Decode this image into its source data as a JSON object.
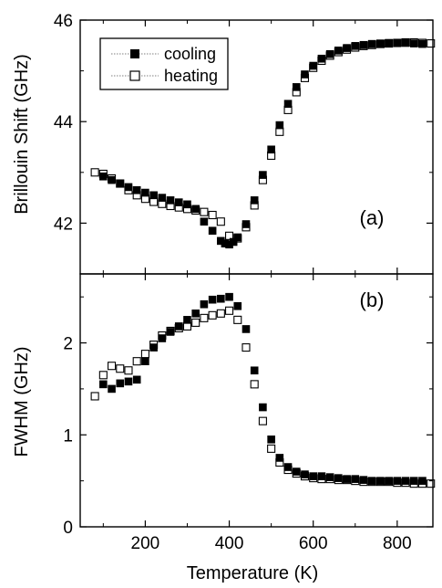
{
  "chart_data": [
    {
      "type": "scatter",
      "panel_label": "(a)",
      "ylabel": "Brillouin Shift (GHz)",
      "xlim": [
        45,
        885
      ],
      "ylim": [
        41,
        46
      ],
      "x_ticks": [
        200,
        400,
        600,
        800
      ],
      "y_ticks": [
        42,
        44,
        46
      ],
      "y_tick_labels": [
        "42",
        "44",
        "46"
      ],
      "legend": {
        "placement": "top-left",
        "entries": [
          "cooling",
          "heating"
        ]
      },
      "series": [
        {
          "name": "cooling",
          "marker": "filled-square",
          "x": [
            100,
            120,
            140,
            160,
            180,
            200,
            220,
            240,
            260,
            280,
            300,
            320,
            340,
            360,
            380,
            390,
            400,
            410,
            420,
            440,
            460,
            480,
            500,
            520,
            540,
            560,
            580,
            600,
            620,
            640,
            660,
            680,
            700,
            720,
            740,
            760,
            780,
            800,
            820,
            840,
            860
          ],
          "y": [
            42.92,
            42.85,
            42.78,
            42.71,
            42.65,
            42.6,
            42.55,
            42.5,
            42.45,
            42.41,
            42.37,
            42.28,
            42.03,
            41.85,
            41.65,
            41.6,
            41.58,
            41.63,
            41.72,
            41.98,
            42.45,
            42.95,
            43.45,
            43.93,
            44.35,
            44.68,
            44.93,
            45.1,
            45.24,
            45.33,
            45.4,
            45.45,
            45.49,
            45.51,
            45.53,
            45.54,
            45.55,
            45.55,
            45.55,
            45.54,
            45.53
          ]
        },
        {
          "name": "heating",
          "marker": "open-square",
          "x": [
            80,
            100,
            120,
            140,
            160,
            180,
            200,
            220,
            240,
            260,
            280,
            300,
            320,
            340,
            360,
            380,
            400,
            420,
            440,
            460,
            480,
            500,
            520,
            540,
            560,
            580,
            600,
            620,
            640,
            660,
            680,
            700,
            720,
            740,
            760,
            780,
            800,
            820,
            840,
            860,
            880
          ],
          "y": [
            43.0,
            42.97,
            42.88,
            42.78,
            42.65,
            42.55,
            42.48,
            42.42,
            42.38,
            42.34,
            42.31,
            42.28,
            42.25,
            42.22,
            42.16,
            42.03,
            41.75,
            41.7,
            41.92,
            42.35,
            42.85,
            43.33,
            43.8,
            44.23,
            44.58,
            44.86,
            45.06,
            45.2,
            45.3,
            45.37,
            45.42,
            45.46,
            45.49,
            45.51,
            45.53,
            45.54,
            45.55,
            45.56,
            45.56,
            45.55,
            45.54
          ]
        }
      ]
    },
    {
      "type": "scatter",
      "panel_label": "(b)",
      "xlabel": "Temperature (K)",
      "ylabel": "FWHM (GHz)",
      "xlim": [
        45,
        885
      ],
      "ylim": [
        0,
        2.75
      ],
      "x_ticks": [
        200,
        400,
        600,
        800
      ],
      "x_tick_labels": [
        "200",
        "400",
        "600",
        "800"
      ],
      "y_ticks": [
        0,
        1,
        2
      ],
      "y_tick_labels": [
        "0",
        "1",
        "2"
      ],
      "series": [
        {
          "name": "cooling",
          "marker": "filled-square",
          "x": [
            100,
            120,
            140,
            160,
            180,
            200,
            220,
            240,
            260,
            280,
            300,
            320,
            340,
            360,
            380,
            400,
            420,
            440,
            460,
            480,
            500,
            520,
            540,
            560,
            580,
            600,
            620,
            640,
            660,
            680,
            700,
            720,
            740,
            760,
            780,
            800,
            820,
            840,
            860
          ],
          "y": [
            1.55,
            1.5,
            1.56,
            1.58,
            1.6,
            1.8,
            1.95,
            2.05,
            2.12,
            2.18,
            2.25,
            2.32,
            2.42,
            2.47,
            2.48,
            2.5,
            2.4,
            2.15,
            1.7,
            1.3,
            0.95,
            0.75,
            0.65,
            0.6,
            0.57,
            0.55,
            0.55,
            0.54,
            0.53,
            0.52,
            0.52,
            0.51,
            0.5,
            0.5,
            0.5,
            0.5,
            0.5,
            0.5,
            0.5
          ]
        },
        {
          "name": "heating",
          "marker": "open-square",
          "x": [
            80,
            100,
            120,
            140,
            160,
            180,
            200,
            220,
            240,
            260,
            280,
            300,
            320,
            340,
            360,
            380,
            400,
            420,
            440,
            460,
            480,
            500,
            520,
            540,
            560,
            580,
            600,
            620,
            640,
            660,
            680,
            700,
            720,
            740,
            760,
            780,
            800,
            820,
            840,
            860,
            880
          ],
          "y": [
            1.42,
            1.65,
            1.75,
            1.72,
            1.7,
            1.8,
            1.88,
            1.98,
            2.08,
            2.13,
            2.16,
            2.18,
            2.22,
            2.27,
            2.3,
            2.32,
            2.35,
            2.25,
            1.95,
            1.55,
            1.15,
            0.85,
            0.7,
            0.62,
            0.58,
            0.55,
            0.53,
            0.52,
            0.52,
            0.51,
            0.51,
            0.5,
            0.49,
            0.49,
            0.49,
            0.49,
            0.48,
            0.48,
            0.47,
            0.47,
            0.47
          ]
        }
      ]
    }
  ]
}
